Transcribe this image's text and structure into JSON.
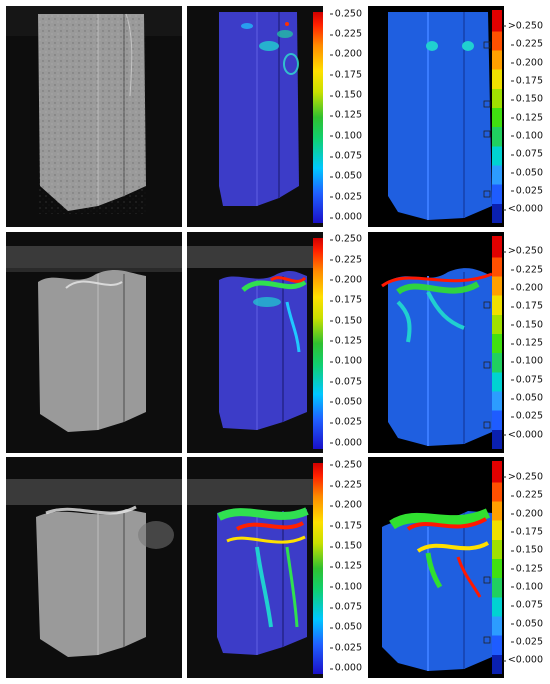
{
  "dic_ticks": [
    "0.250",
    "0.225",
    "0.200",
    "0.175",
    "0.150",
    "0.125",
    "0.100",
    "0.075",
    "0.050",
    "0.025",
    "0.000"
  ],
  "fem_ticks": [
    ">0.250",
    "0.225",
    "0.200",
    "0.175",
    "0.150",
    "0.125",
    "0.100",
    "0.075",
    "0.050",
    "0.025",
    "<0.000"
  ],
  "colors": {
    "background": "#0b0b0b",
    "specimen_gray": "#8a8a8a",
    "fem_blue": "#1f5fe0",
    "dic_overlay_blue": "#3a3ad0"
  },
  "layout_note_rows": [
    "stage-1",
    "stage-2",
    "stage-3"
  ]
}
